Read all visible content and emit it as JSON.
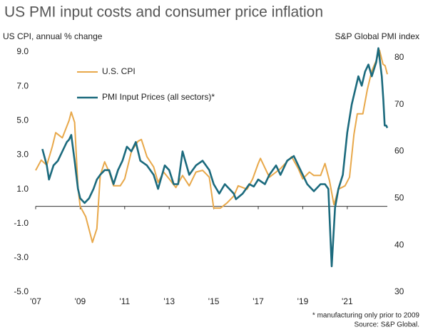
{
  "chart_data": {
    "type": "line",
    "title": "US PMI input costs and consumer price inflation",
    "y_label": "US CPI, annual % change",
    "y2_label": "S&P Global PMI index",
    "notes": [
      "* manufacturing only prior to 2009",
      "Source: S&P Global."
    ],
    "xlim": [
      2007,
      2022.8
    ],
    "xticks": [
      {
        "value": 2007,
        "label": "'07"
      },
      {
        "value": 2009,
        "label": "'09"
      },
      {
        "value": 2011,
        "label": "'11"
      },
      {
        "value": 2013,
        "label": "'13"
      },
      {
        "value": 2015,
        "label": "'15"
      },
      {
        "value": 2017,
        "label": "'17"
      },
      {
        "value": 2019,
        "label": "'19"
      },
      {
        "value": 2021,
        "label": "'21"
      }
    ],
    "ylim": [
      -5,
      9.5
    ],
    "yticks": [
      {
        "value": 9,
        "label": "9.0"
      },
      {
        "value": 7,
        "label": "7.0"
      },
      {
        "value": 5,
        "label": "5.0"
      },
      {
        "value": 3,
        "label": "3.0"
      },
      {
        "value": 1,
        "label": "1.0"
      },
      {
        "value": -1,
        "label": "-1.0"
      },
      {
        "value": -3,
        "label": "-3.0"
      },
      {
        "value": -5,
        "label": "-5.0"
      }
    ],
    "y2lim": [
      30,
      83
    ],
    "y2ticks": [
      80,
      70,
      60,
      50,
      40,
      30
    ],
    "legend": "upper left",
    "series": [
      {
        "name": "U.S. CPI",
        "color": "#e8a84a",
        "x": [
          2007.0,
          2007.25,
          2007.5,
          2007.75,
          2007.9,
          2008.2,
          2008.5,
          2008.6,
          2008.75,
          2008.9,
          2009.0,
          2009.25,
          2009.55,
          2009.75,
          2009.9,
          2010.1,
          2010.3,
          2010.5,
          2010.8,
          2011.0,
          2011.3,
          2011.6,
          2011.75,
          2012.0,
          2012.3,
          2012.5,
          2012.75,
          2013.0,
          2013.3,
          2013.6,
          2013.9,
          2014.2,
          2014.5,
          2014.8,
          2015.0,
          2015.3,
          2015.6,
          2015.9,
          2016.1,
          2016.5,
          2016.75,
          2017.0,
          2017.1,
          2017.5,
          2017.8,
          2018.0,
          2018.5,
          2018.8,
          2019.0,
          2019.3,
          2019.5,
          2019.8,
          2020.0,
          2020.2,
          2020.4,
          2020.6,
          2020.9,
          2021.1,
          2021.3,
          2021.45,
          2021.7,
          2021.9,
          2022.1,
          2022.3,
          2022.45,
          2022.6,
          2022.7,
          2022.8
        ],
        "values": [
          2.1,
          2.7,
          2.4,
          3.5,
          4.3,
          4.0,
          5.0,
          5.5,
          4.9,
          1.1,
          0.0,
          -0.6,
          -2.1,
          -1.3,
          1.8,
          2.6,
          2.0,
          1.2,
          1.2,
          1.6,
          3.2,
          3.8,
          3.9,
          2.9,
          2.3,
          1.4,
          2.0,
          1.6,
          1.1,
          1.8,
          1.2,
          2.0,
          2.1,
          1.7,
          -0.1,
          -0.1,
          0.2,
          0.6,
          1.2,
          1.0,
          1.6,
          2.5,
          2.8,
          1.7,
          2.0,
          2.2,
          2.9,
          2.2,
          1.6,
          2.0,
          1.8,
          1.8,
          2.5,
          1.5,
          0.1,
          1.0,
          1.2,
          1.7,
          4.2,
          5.4,
          5.4,
          6.8,
          7.9,
          8.5,
          9.1,
          8.3,
          8.2,
          7.7
        ]
      },
      {
        "name": "PMI Input Prices (all sectors)*",
        "color": "#1b6a7d",
        "axis": "y2",
        "x": [
          2007.3,
          2007.5,
          2007.6,
          2007.8,
          2008.0,
          2008.2,
          2008.4,
          2008.5,
          2008.6,
          2008.75,
          2008.9,
          2009.0,
          2009.2,
          2009.4,
          2009.6,
          2009.75,
          2009.9,
          2010.1,
          2010.3,
          2010.5,
          2010.7,
          2010.9,
          2011.1,
          2011.3,
          2011.5,
          2011.7,
          2012.0,
          2012.3,
          2012.5,
          2012.8,
          2013.0,
          2013.2,
          2013.4,
          2013.6,
          2013.9,
          2014.2,
          2014.5,
          2014.8,
          2015.0,
          2015.25,
          2015.5,
          2015.7,
          2015.9,
          2016.0,
          2016.3,
          2016.6,
          2016.8,
          2017.0,
          2017.3,
          2017.5,
          2017.8,
          2018.0,
          2018.3,
          2018.6,
          2018.9,
          2019.2,
          2019.5,
          2019.8,
          2020.0,
          2020.15,
          2020.3,
          2020.45,
          2020.6,
          2020.8,
          2021.0,
          2021.2,
          2021.4,
          2021.5,
          2021.65,
          2021.8,
          2021.95,
          2022.1,
          2022.3,
          2022.4,
          2022.55,
          2022.62,
          2022.68,
          2022.75,
          2022.8
        ],
        "values": [
          60.5,
          57,
          54,
          57,
          58,
          60,
          62,
          62.5,
          63.5,
          58,
          52,
          50,
          49,
          50,
          52,
          54,
          55,
          56,
          56,
          53,
          56,
          58,
          61,
          60,
          62,
          58,
          57,
          55,
          52,
          57,
          56,
          53,
          53,
          60,
          55,
          57,
          58,
          56,
          53,
          51,
          53,
          52,
          51,
          49.8,
          51,
          53,
          52.5,
          54,
          53,
          55,
          57,
          55,
          58,
          59,
          56,
          53,
          51.5,
          53,
          53,
          52,
          35.5,
          48,
          52,
          55,
          64,
          70,
          74,
          76,
          74,
          77,
          78.5,
          76,
          79,
          82,
          76,
          71,
          65.5,
          65.5,
          65
        ]
      }
    ]
  }
}
